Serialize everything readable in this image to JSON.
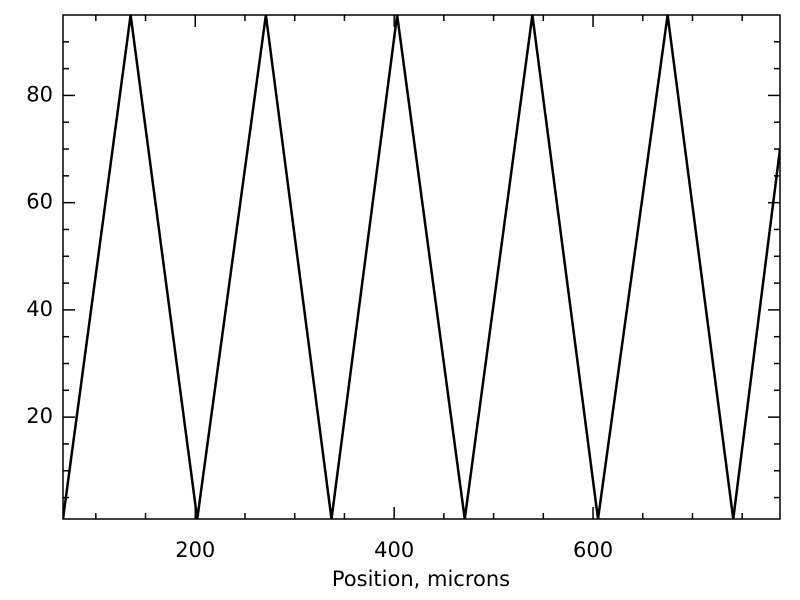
{
  "chart_data": {
    "type": "line",
    "x_label": "Position, microns",
    "x": [
      67,
      135,
      202,
      271,
      337,
      403,
      471,
      539,
      605,
      675,
      741,
      788
    ],
    "series": [
      {
        "color": "#000000",
        "values": [
          1,
          95,
          1,
          95,
          1,
          95,
          1,
          95,
          1,
          95,
          1,
          70
        ]
      }
    ],
    "xlim": [
      67,
      788
    ],
    "xticks": [
      200,
      400,
      600
    ],
    "xminorticks": [
      100,
      150,
      250,
      300,
      350,
      450,
      500,
      550,
      650,
      700,
      750
    ],
    "ylim": [
      1,
      95
    ],
    "yticks": [
      20,
      40,
      60,
      80
    ],
    "yminorticks": [
      5,
      10,
      15,
      25,
      30,
      35,
      45,
      50,
      55,
      65,
      70,
      75,
      85,
      90
    ]
  }
}
